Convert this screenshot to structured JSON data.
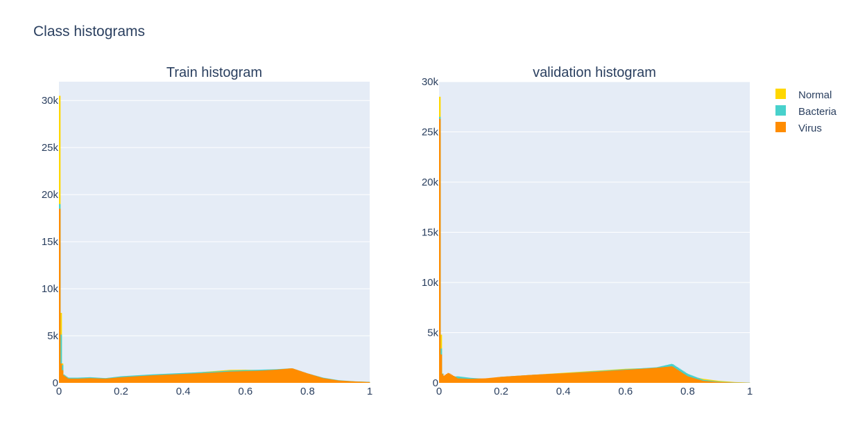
{
  "title": "Class histograms",
  "colors": {
    "Normal": "#FFD700",
    "Bacteria": "#48D1CC",
    "Virus": "#FF8C00",
    "plot_bg": "#E5ECF6",
    "grid": "#ffffff"
  },
  "legend": {
    "placement": "right",
    "items": [
      "Normal",
      "Bacteria",
      "Virus"
    ]
  },
  "chart_data": [
    {
      "type": "bar",
      "title": "Train histogram",
      "xlabel": "",
      "ylabel": "",
      "xlim": [
        0,
        1
      ],
      "ylim": [
        0,
        32000
      ],
      "xticks": [
        0,
        0.2,
        0.4,
        0.6,
        0.8,
        1
      ],
      "xtick_labels": [
        "0",
        "0.2",
        "0.4",
        "0.6",
        "0.8",
        "1"
      ],
      "yticks": [
        0,
        5000,
        10000,
        15000,
        20000,
        25000,
        30000
      ],
      "ytick_labels": [
        "0",
        "5k",
        "10k",
        "15k",
        "20k",
        "25k",
        "30k"
      ],
      "grid": true,
      "series": [
        {
          "name": "Normal",
          "x": [
            0,
            0.003,
            0.008,
            0.015,
            0.03,
            0.06,
            0.1,
            0.15,
            0.2,
            0.3,
            0.4,
            0.5,
            0.55,
            0.6,
            0.65,
            0.7,
            0.75,
            0.8,
            0.85,
            0.9,
            0.95,
            1
          ],
          "y": [
            30500,
            20000,
            3000,
            900,
            500,
            450,
            450,
            500,
            650,
            850,
            1000,
            1250,
            1380,
            1400,
            1350,
            1300,
            1250,
            900,
            500,
            250,
            150,
            100
          ]
        },
        {
          "name": "Bacteria",
          "x": [
            0,
            0.003,
            0.008,
            0.015,
            0.03,
            0.06,
            0.1,
            0.15,
            0.2,
            0.3,
            0.4,
            0.5,
            0.55,
            0.6,
            0.65,
            0.7,
            0.75,
            0.8,
            0.85,
            0.9,
            0.95,
            1
          ],
          "y": [
            19000,
            12000,
            2700,
            900,
            550,
            550,
            600,
            500,
            700,
            900,
            1050,
            1200,
            1300,
            1350,
            1400,
            1450,
            1550,
            1000,
            550,
            280,
            160,
            100
          ]
        },
        {
          "name": "Virus",
          "x": [
            0,
            0.003,
            0.008,
            0.015,
            0.03,
            0.06,
            0.1,
            0.15,
            0.2,
            0.3,
            0.4,
            0.5,
            0.55,
            0.6,
            0.65,
            0.7,
            0.75,
            0.8,
            0.85,
            0.9,
            0.95,
            1
          ],
          "y": [
            18500,
            2800,
            1800,
            800,
            450,
            450,
            500,
            450,
            600,
            800,
            950,
            1100,
            1200,
            1250,
            1300,
            1400,
            1550,
            1000,
            500,
            250,
            150,
            80
          ]
        }
      ]
    },
    {
      "type": "bar",
      "title": "validation histogram",
      "xlabel": "",
      "ylabel": "",
      "xlim": [
        0,
        1
      ],
      "ylim": [
        0,
        30000
      ],
      "xticks": [
        0,
        0.2,
        0.4,
        0.6,
        0.8,
        1
      ],
      "xtick_labels": [
        "0",
        "0.2",
        "0.4",
        "0.6",
        "0.8",
        "1"
      ],
      "yticks": [
        0,
        5000,
        10000,
        15000,
        20000,
        25000,
        30000
      ],
      "ytick_labels": [
        "0",
        "5k",
        "10k",
        "15k",
        "20k",
        "25k",
        "30k"
      ],
      "grid": true,
      "series": [
        {
          "name": "Normal",
          "x": [
            0,
            0.003,
            0.008,
            0.015,
            0.03,
            0.06,
            0.1,
            0.15,
            0.2,
            0.3,
            0.4,
            0.5,
            0.55,
            0.6,
            0.65,
            0.7,
            0.75,
            0.8,
            0.85,
            0.9,
            0.95,
            1
          ],
          "y": [
            28500,
            15000,
            1200,
            600,
            500,
            400,
            350,
            400,
            600,
            800,
            1000,
            1200,
            1300,
            1400,
            1450,
            1500,
            1300,
            700,
            400,
            200,
            80,
            30
          ]
        },
        {
          "name": "Bacteria",
          "x": [
            0,
            0.003,
            0.008,
            0.015,
            0.03,
            0.06,
            0.1,
            0.15,
            0.2,
            0.3,
            0.4,
            0.5,
            0.55,
            0.6,
            0.65,
            0.7,
            0.75,
            0.8,
            0.85,
            0.9,
            0.95,
            1
          ],
          "y": [
            26500,
            10000,
            1100,
            700,
            600,
            650,
            500,
            400,
            600,
            800,
            950,
            1150,
            1250,
            1350,
            1450,
            1550,
            1900,
            900,
            300,
            120,
            50,
            20
          ]
        },
        {
          "name": "Virus",
          "x": [
            0,
            0.003,
            0.008,
            0.015,
            0.03,
            0.06,
            0.1,
            0.15,
            0.2,
            0.3,
            0.4,
            0.5,
            0.55,
            0.6,
            0.65,
            0.7,
            0.75,
            0.8,
            0.85,
            0.9,
            0.95,
            1
          ],
          "y": [
            26300,
            8000,
            1000,
            700,
            1000,
            450,
            400,
            450,
            600,
            800,
            950,
            1100,
            1200,
            1300,
            1400,
            1500,
            1650,
            650,
            200,
            80,
            30,
            10
          ]
        }
      ]
    }
  ]
}
